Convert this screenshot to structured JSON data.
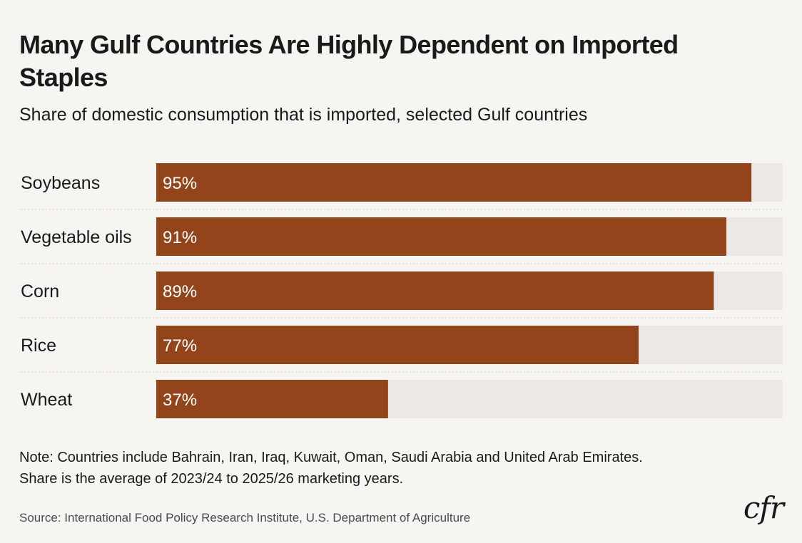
{
  "title": "Many Gulf Countries Are Highly Dependent on Imported Staples",
  "subtitle": "Share of domestic consumption that is imported, selected Gulf countries",
  "note": {
    "line1": "Note: Countries include Bahrain, Iran, Iraq, Kuwait, Oman, Saudi Arabia and United Arab Emirates.",
    "line2": "Share is the average of 2023/24 to 2025/26 marketing years."
  },
  "source": "Source: International Food Policy Research Institute, U.S. Department of Agriculture",
  "logo": "cfr",
  "colors": {
    "bar": "#93441a",
    "track": "#ece8e3",
    "background": "#f7f5f2",
    "divider": "#cfcac4"
  },
  "chart_data": {
    "type": "bar",
    "orientation": "horizontal",
    "categories": [
      "Soybeans",
      "Vegetable oils",
      "Corn",
      "Rice",
      "Wheat"
    ],
    "values": [
      95,
      91,
      89,
      77,
      37
    ],
    "value_labels": [
      "95%",
      "91%",
      "89%",
      "77%",
      "37%"
    ],
    "xlim": [
      0,
      100
    ],
    "grid": false,
    "legend": "none"
  }
}
